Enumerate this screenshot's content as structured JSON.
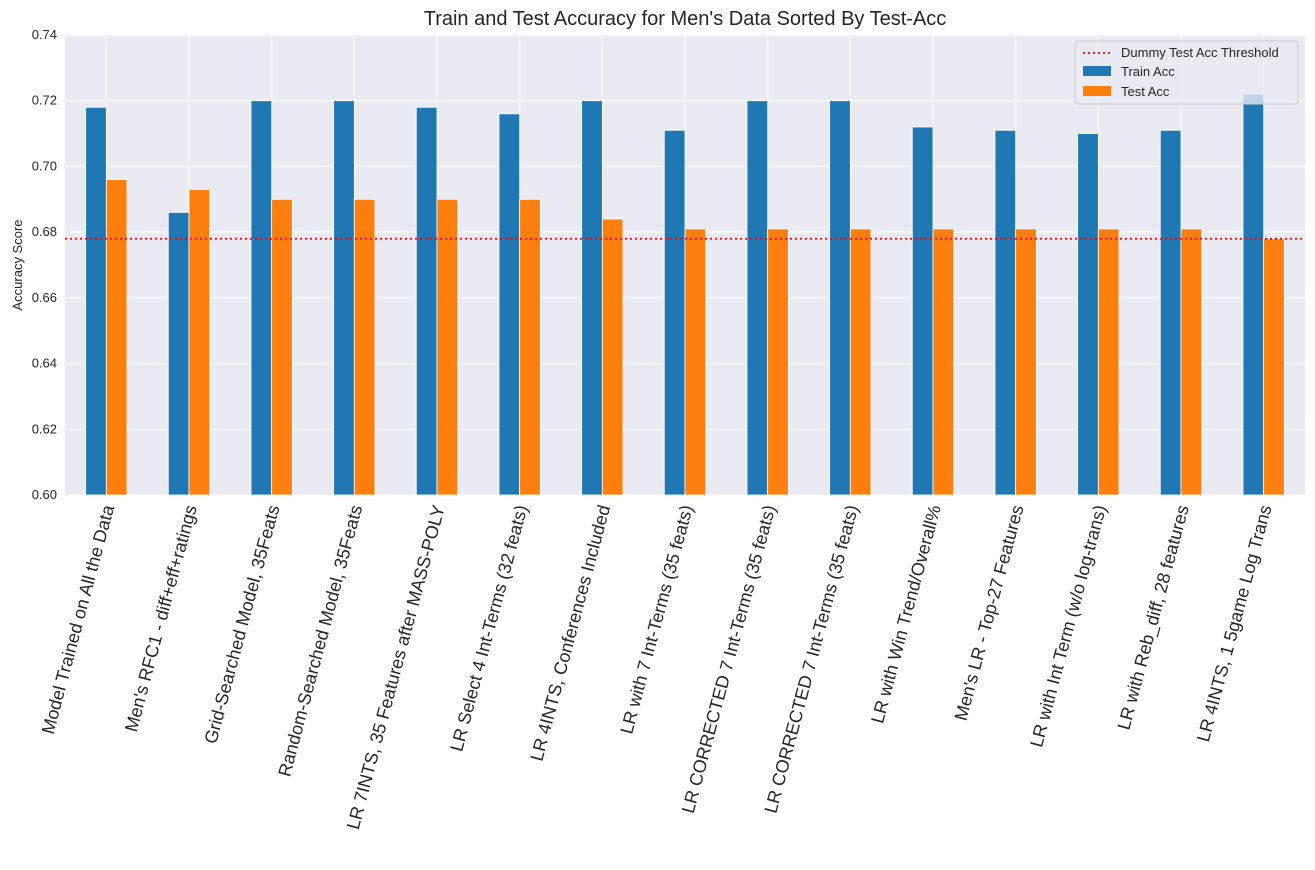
{
  "chart_data": {
    "type": "bar",
    "title": "Train and Test Accuracy for Men's Data Sorted By Test-Acc",
    "xlabel": "",
    "ylabel": "Accuracy Score",
    "ylim": [
      0.6,
      0.74
    ],
    "yticks": [
      "0.60",
      "0.62",
      "0.64",
      "0.66",
      "0.68",
      "0.70",
      "0.72",
      "0.74"
    ],
    "grid": true,
    "legend_position": "top-right",
    "categories": [
      "Model Trained on All the Data",
      "Men's RFC1 - diff+eff+ratings",
      "Grid-Searched Model, 35Feats",
      "Random-Searched Model, 35Feats",
      "LR 7INTS, 35 Features after MASS-POLY",
      "LR Select 4 Int-Terms (32 feats)",
      "LR 4INTS, Conferences Included",
      "LR with 7 Int-Terms (35 feats)",
      "LR CORRECTED 7 Int-Terms (35 feats)",
      "LR CORRECTED 7 Int-Terms (35 feats)",
      "LR with Win Trend/Overall%",
      "Men's LR - Top-27 Features",
      "LR with Int Term (w/o log-trans)",
      "LR with Reb_diff, 28 features",
      "LR 4INTS, 1 5game Log Trans"
    ],
    "series": [
      {
        "name": "Train Acc",
        "color": "#1f77b4",
        "values": [
          0.718,
          0.686,
          0.72,
          0.72,
          0.718,
          0.716,
          0.72,
          0.711,
          0.72,
          0.72,
          0.712,
          0.711,
          0.71,
          0.711,
          0.722
        ]
      },
      {
        "name": "Test Acc",
        "color": "#ff7f0e",
        "values": [
          0.696,
          0.693,
          0.69,
          0.69,
          0.69,
          0.69,
          0.684,
          0.681,
          0.681,
          0.681,
          0.681,
          0.681,
          0.681,
          0.681,
          0.678
        ]
      }
    ],
    "threshold": {
      "name": "Dummy Test Acc Threshold",
      "value": 0.678,
      "color": "#ff0000"
    },
    "background_color": "#eaeaf2",
    "grid_color": "#ffffff"
  }
}
